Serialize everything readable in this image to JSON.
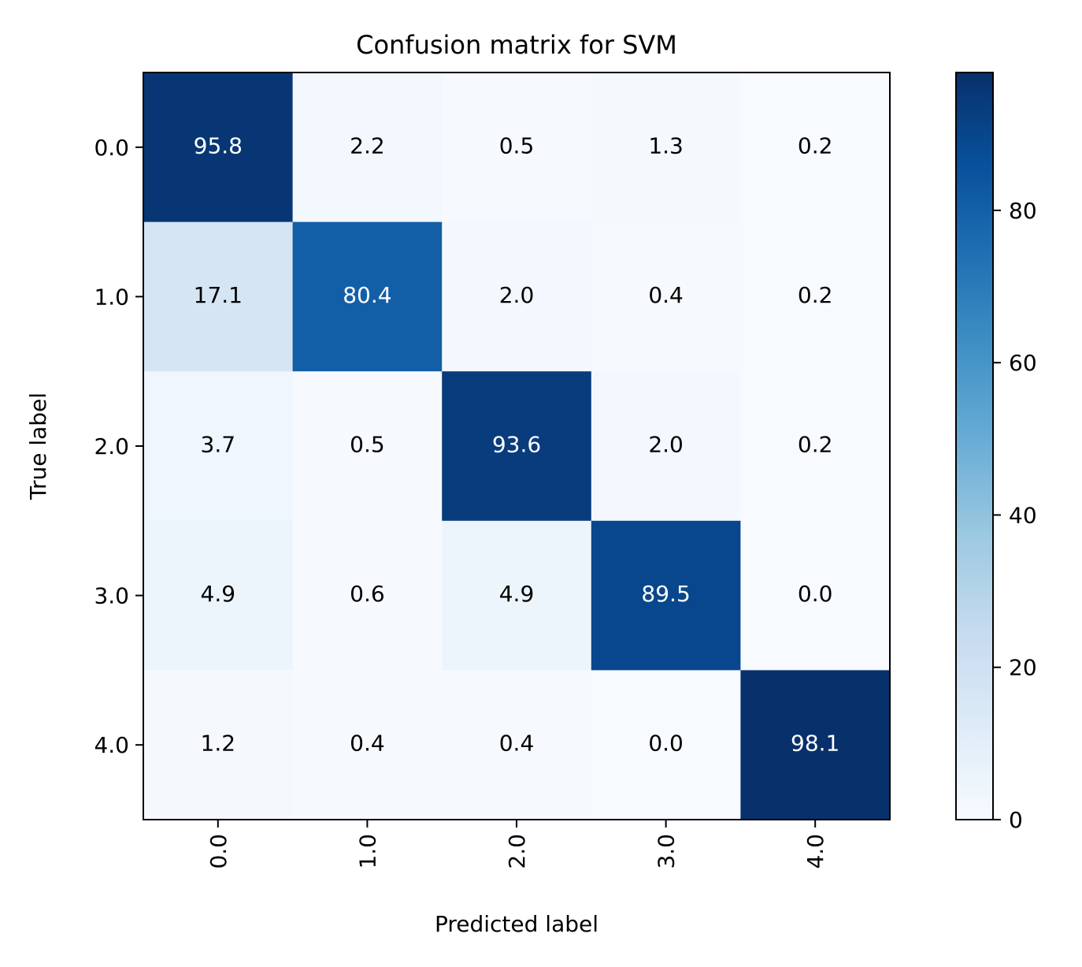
{
  "chart_data": {
    "type": "heatmap",
    "title": "Confusion matrix for SVM",
    "xlabel": "Predicted label",
    "ylabel": "True label",
    "x_categories": [
      "0.0",
      "1.0",
      "2.0",
      "3.0",
      "4.0"
    ],
    "y_categories": [
      "0.0",
      "1.0",
      "2.0",
      "3.0",
      "4.0"
    ],
    "matrix": [
      [
        95.8,
        2.2,
        0.5,
        1.3,
        0.2
      ],
      [
        17.1,
        80.4,
        2.0,
        0.4,
        0.2
      ],
      [
        3.7,
        0.5,
        93.6,
        2.0,
        0.2
      ],
      [
        4.9,
        0.6,
        4.9,
        89.5,
        0.0
      ],
      [
        1.2,
        0.4,
        0.4,
        0.0,
        98.1
      ]
    ],
    "value_labels": [
      [
        "95.8",
        "2.2",
        "0.5",
        "1.3",
        "0.2"
      ],
      [
        "17.1",
        "80.4",
        "2.0",
        "0.4",
        "0.2"
      ],
      [
        "3.7",
        "0.5",
        "93.6",
        "2.0",
        "0.2"
      ],
      [
        "4.9",
        "0.6",
        "4.9",
        "89.5",
        "0.0"
      ],
      [
        "1.2",
        "0.4",
        "0.4",
        "0.0",
        "98.1"
      ]
    ],
    "colormap": "Blues",
    "colorbar": {
      "range": [
        0,
        98.1
      ],
      "ticks": [
        0,
        20,
        40,
        60,
        80
      ],
      "tick_labels": [
        "0",
        "20",
        "40",
        "60",
        "80"
      ]
    },
    "x_tick_rotation": "vertical",
    "text_color_dark": "#000000",
    "text_color_light": "#ffffff",
    "threshold": 49
  }
}
